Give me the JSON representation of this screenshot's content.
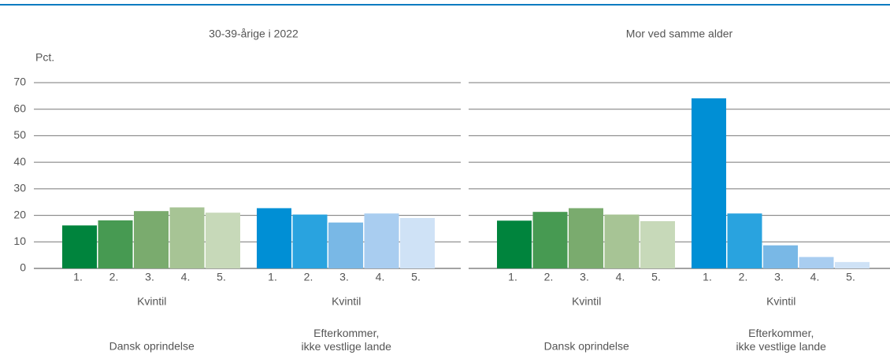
{
  "chart_data": [
    {
      "type": "bar",
      "title": "30-39-årige i 2022",
      "ylabel": "Pct.",
      "ylim": [
        0,
        70
      ],
      "yticks": [
        0,
        10,
        20,
        30,
        40,
        50,
        60,
        70
      ],
      "grid": true,
      "groups": [
        {
          "name": "Dansk oprindelse",
          "axis_label": "Kvintil",
          "categories": [
            "1.",
            "2.",
            "3.",
            "4.",
            "5."
          ],
          "values": [
            16.2,
            18.1,
            21.6,
            23.0,
            21.0
          ],
          "colors": [
            "#00843d",
            "#479a52",
            "#7aab6e",
            "#a7c495",
            "#c7d9b9"
          ]
        },
        {
          "name": "Efterkommer,\nikke vestlige lande",
          "axis_label": "Kvintil",
          "categories": [
            "1.",
            "2.",
            "3.",
            "4.",
            "5."
          ],
          "values": [
            22.7,
            20.3,
            17.3,
            20.7,
            19.0
          ],
          "colors": [
            "#008fd5",
            "#29a3df",
            "#79b8e6",
            "#a9cdf0",
            "#cfe2f6"
          ]
        }
      ]
    },
    {
      "type": "bar",
      "title": "Mor ved samme alder",
      "sharey": true,
      "grid": true,
      "groups": [
        {
          "name": "Dansk oprindelse",
          "axis_label": "Kvintil",
          "categories": [
            "1.",
            "2.",
            "3.",
            "4.",
            "5."
          ],
          "values": [
            18.0,
            21.3,
            22.7,
            20.3,
            17.8
          ],
          "colors": [
            "#00843d",
            "#479a52",
            "#7aab6e",
            "#a7c495",
            "#c7d9b9"
          ]
        },
        {
          "name": "Efterkommer,\nikke vestlige lande",
          "axis_label": "Kvintil",
          "categories": [
            "1.",
            "2.",
            "3.",
            "4.",
            "5."
          ],
          "values": [
            64.1,
            20.7,
            8.7,
            4.3,
            2.4
          ],
          "colors": [
            "#008fd5",
            "#29a3df",
            "#79b8e6",
            "#a9cdf0",
            "#cfe2f6"
          ]
        }
      ]
    }
  ]
}
